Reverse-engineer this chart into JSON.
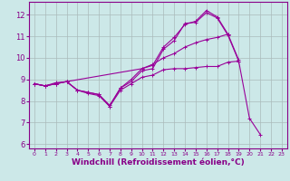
{
  "background_color": "#cce8e8",
  "grid_color": "#aabbbb",
  "line_color": "#990099",
  "xlabel": "Windchill (Refroidissement éolien,°C)",
  "xlabel_fontsize": 6.5,
  "ylabel_ticks": [
    6,
    7,
    8,
    9,
    10,
    11,
    12
  ],
  "xlabel_ticks": [
    0,
    1,
    2,
    3,
    4,
    5,
    6,
    7,
    8,
    9,
    10,
    11,
    12,
    13,
    14,
    15,
    16,
    17,
    18,
    19,
    20,
    21,
    22,
    23
  ],
  "xlim": [
    -0.5,
    23.5
  ],
  "ylim": [
    5.8,
    12.6
  ],
  "lines": [
    {
      "x": [
        0,
        1,
        2,
        3,
        4,
        5,
        6,
        7,
        8,
        9,
        10,
        11,
        12,
        13,
        14,
        15,
        16,
        17,
        18,
        19
      ],
      "y": [
        8.8,
        8.7,
        8.8,
        8.9,
        8.5,
        8.4,
        8.3,
        7.8,
        8.6,
        8.9,
        9.4,
        9.5,
        10.4,
        10.8,
        11.6,
        11.65,
        12.1,
        11.85,
        11.05,
        9.85
      ]
    },
    {
      "x": [
        0,
        1,
        2,
        3,
        4,
        5,
        6,
        7,
        8,
        9,
        10,
        11,
        12,
        13,
        14,
        15,
        16,
        17,
        18,
        19
      ],
      "y": [
        8.8,
        8.7,
        8.85,
        8.9,
        8.5,
        8.4,
        8.3,
        7.75,
        8.6,
        9.0,
        9.5,
        9.65,
        10.5,
        10.95,
        11.55,
        11.7,
        12.2,
        11.9,
        11.1,
        9.9
      ]
    },
    {
      "x": [
        0,
        1,
        2,
        3,
        10,
        11,
        12,
        13,
        14,
        15,
        16,
        17,
        18
      ],
      "y": [
        8.8,
        8.7,
        8.8,
        8.9,
        9.5,
        9.7,
        10.0,
        10.2,
        10.5,
        10.7,
        10.85,
        10.95,
        11.1
      ]
    },
    {
      "x": [
        0,
        1,
        2,
        3,
        4,
        5,
        6,
        7,
        8,
        9,
        10,
        11,
        12,
        13,
        14,
        15,
        16,
        17,
        18,
        19,
        20,
        21
      ],
      "y": [
        8.8,
        8.7,
        8.8,
        8.9,
        8.5,
        8.35,
        8.25,
        7.75,
        8.5,
        8.8,
        9.1,
        9.2,
        9.45,
        9.5,
        9.5,
        9.55,
        9.6,
        9.6,
        9.8,
        9.85,
        7.2,
        6.45
      ]
    }
  ]
}
